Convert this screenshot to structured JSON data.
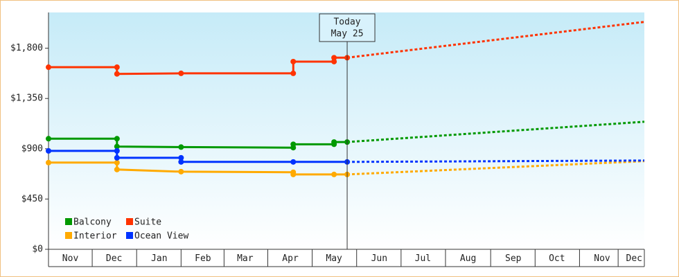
{
  "chart_data": {
    "type": "line",
    "xlim": [
      0,
      409
    ],
    "ylim": [
      0,
      2120
    ],
    "yticks": [
      {
        "value": 0,
        "label": "$0"
      },
      {
        "value": 450,
        "label": "$450"
      },
      {
        "value": 900,
        "label": "$900"
      },
      {
        "value": 1350,
        "label": "$1,350"
      },
      {
        "value": 1800,
        "label": "$1,800"
      }
    ],
    "xticks": [
      {
        "value": 15,
        "label": "Nov"
      },
      {
        "value": 45,
        "label": "Dec"
      },
      {
        "value": 76,
        "label": "Jan"
      },
      {
        "value": 106,
        "label": "Feb"
      },
      {
        "value": 135,
        "label": "Mar"
      },
      {
        "value": 166,
        "label": "Apr"
      },
      {
        "value": 196,
        "label": "May"
      },
      {
        "value": 227,
        "label": "Jun"
      },
      {
        "value": 257,
        "label": "Jul"
      },
      {
        "value": 288,
        "label": "Aug"
      },
      {
        "value": 319,
        "label": "Sep"
      },
      {
        "value": 349,
        "label": "Oct"
      },
      {
        "value": 380,
        "label": "Nov"
      },
      {
        "value": 402,
        "label": "Dec"
      }
    ],
    "annotation": {
      "lines": [
        "Today",
        "May 25"
      ],
      "x": 205
    },
    "series": [
      {
        "name": "Balcony",
        "color": "#009900",
        "x": [
          0,
          47,
          47,
          91,
          168,
          168,
          196,
          196,
          205
        ],
        "values": [
          990,
          990,
          920,
          915,
          910,
          940,
          940,
          960,
          960
        ],
        "forecast": {
          "x": [
            205,
            409
          ],
          "values": [
            960,
            1142
          ]
        }
      },
      {
        "name": "Suite",
        "color": "#ff3300",
        "x": [
          0,
          47,
          47,
          91,
          168,
          168,
          196,
          196,
          205
        ],
        "values": [
          1630,
          1630,
          1570,
          1575,
          1575,
          1680,
          1680,
          1715,
          1715
        ],
        "forecast": {
          "x": [
            205,
            409
          ],
          "values": [
            1715,
            2036
          ]
        }
      },
      {
        "name": "Interior",
        "color": "#ffaa00",
        "x": [
          0,
          47,
          47,
          91,
          168,
          168,
          196,
          205
        ],
        "values": [
          776,
          776,
          714,
          695,
          690,
          670,
          670,
          670
        ],
        "forecast": {
          "x": [
            205,
            409
          ],
          "values": [
            670,
            789
          ]
        }
      },
      {
        "name": "Ocean View",
        "color": "#0033ff",
        "x": [
          0,
          47,
          47,
          91,
          91,
          168,
          205
        ],
        "values": [
          881,
          881,
          819,
          819,
          782,
          782,
          782
        ],
        "forecast": {
          "x": [
            205,
            409
          ],
          "values": [
            782,
            795
          ]
        }
      }
    ]
  }
}
